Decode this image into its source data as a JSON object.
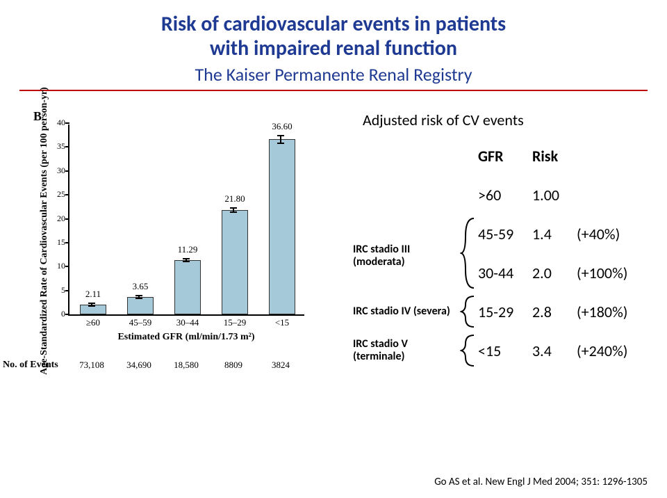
{
  "title": {
    "line1": "Risk of cardiovascular events in patients",
    "line2": "with impaired renal function",
    "sub": "The Kaiser Permanente Renal Registry",
    "title_color": "#1f3a93",
    "title_fontsize": 30,
    "sub_fontsize": 26,
    "rule_color": "#c00000"
  },
  "chart": {
    "panel_letter": "B",
    "type": "bar_with_error",
    "ylabel": "Age-Standardized Rate of Cardiovascular Events (per 100 person-yr)",
    "xlabel": "Estimated GFR (ml/min/1.73 m²)",
    "ylim": [
      0,
      40
    ],
    "yticks": [
      0,
      5,
      10,
      15,
      20,
      25,
      30,
      35,
      40
    ],
    "categories": [
      "≥60",
      "45–59",
      "30–44",
      "15–29",
      "<15"
    ],
    "values": [
      2.11,
      3.65,
      11.29,
      21.8,
      36.6
    ],
    "bar_color": "#a6c9d9",
    "bar_border": "#333333",
    "background_color": "#ffffff",
    "no_of_events_label": "No. of Events",
    "no_of_events": [
      "73,108",
      "34,690",
      "18,580",
      "8809",
      "3824"
    ],
    "fontsize_axis": 13,
    "fontsize_label": 14
  },
  "risk_table": {
    "title": "Adjusted risk of CV events",
    "col_gfr": "GFR",
    "col_risk": "Risk",
    "stage_labels": {
      "iii": "IRC stadio III (moderata)",
      "iv": "IRC stadio IV (severa)",
      "v": "IRC stadio V (terminale)"
    },
    "rows": [
      {
        "gfr": ">60",
        "risk": "1.00",
        "pct": ""
      },
      {
        "gfr": "45-59",
        "risk": "1.4",
        "pct": "(+40%)"
      },
      {
        "gfr": "30-44",
        "risk": "2.0",
        "pct": "(+100%)"
      },
      {
        "gfr": "15-29",
        "risk": "2.8",
        "pct": "(+180%)"
      },
      {
        "gfr": "<15",
        "risk": "3.4",
        "pct": "(+240%)"
      }
    ],
    "fontsize": 22,
    "label_fontsize": 16,
    "text_color": "#000000"
  },
  "citation": "Go AS et al. New Engl J Med 2004; 351: 1296-1305"
}
